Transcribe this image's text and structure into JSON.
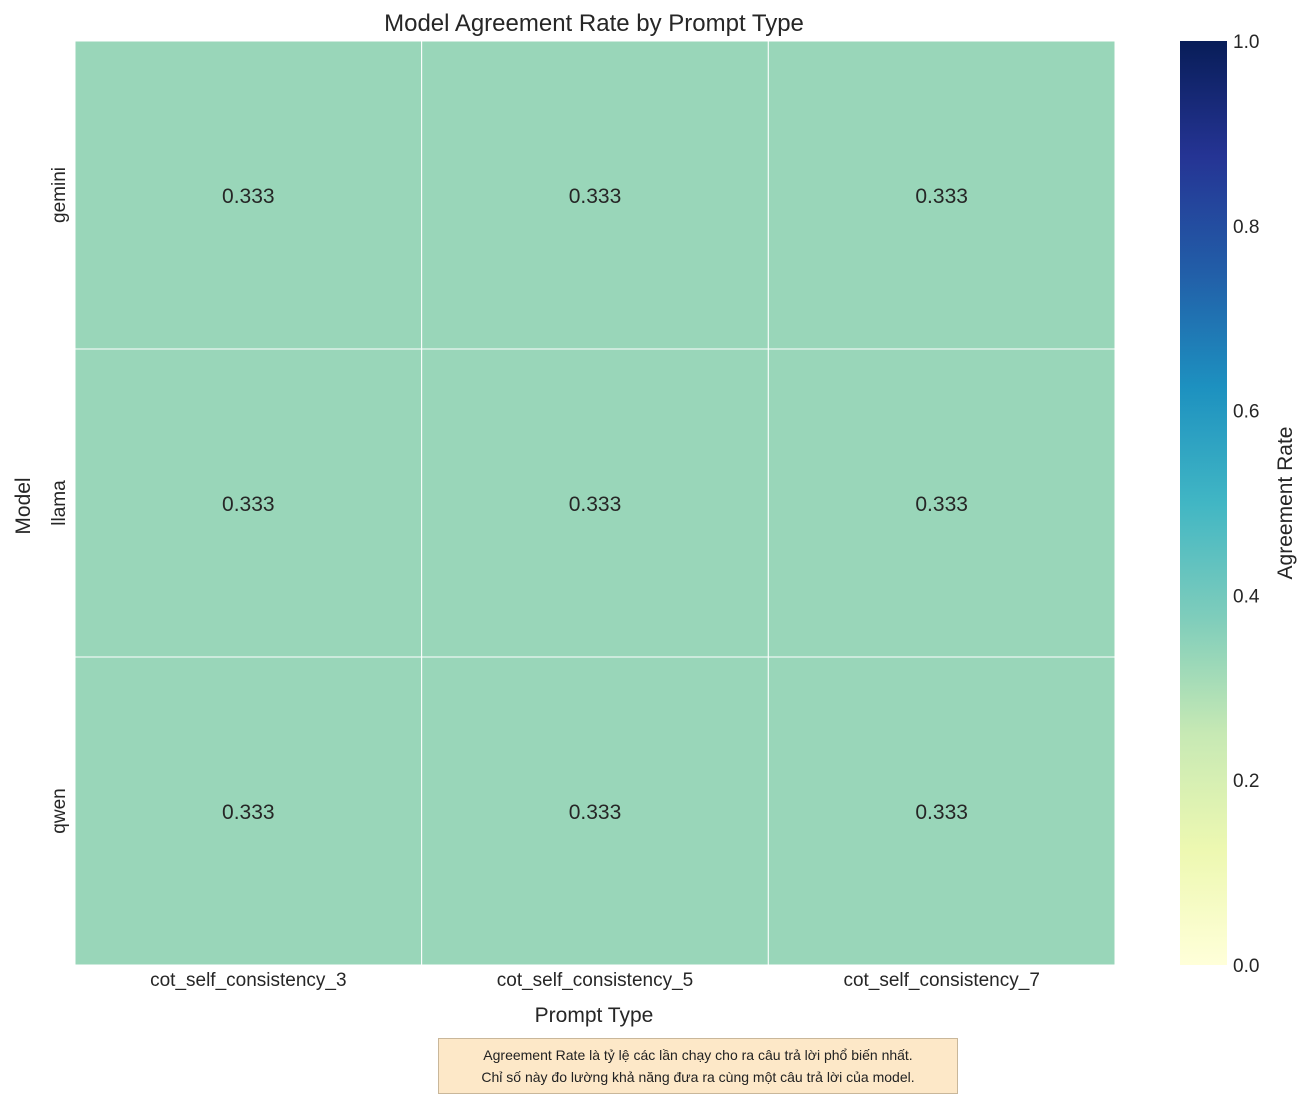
{
  "chart_data": {
    "type": "heatmap",
    "title": "Model Agreement Rate by Prompt Type",
    "xlabel": "Prompt Type",
    "ylabel": "Model",
    "x_categories": [
      "cot_self_consistency_3",
      "cot_self_consistency_5",
      "cot_self_consistency_7"
    ],
    "y_categories": [
      "gemini",
      "llama",
      "qwen"
    ],
    "values": [
      [
        0.333,
        0.333,
        0.333
      ],
      [
        0.333,
        0.333,
        0.333
      ],
      [
        0.333,
        0.333,
        0.333
      ]
    ],
    "value_format": "0.333",
    "colorbar": {
      "label": "Agreement Rate",
      "range": [
        0,
        1
      ],
      "ticks": [
        "0.0",
        "0.2",
        "0.4",
        "0.6",
        "0.8",
        "1.0"
      ],
      "colormap": "YlGnBu",
      "stops": [
        "#ffffd9",
        "#edf8b1",
        "#c7e9b4",
        "#7fcdbb",
        "#41b6c4",
        "#1d91c0",
        "#225ea8",
        "#253494",
        "#081d58"
      ]
    },
    "cell_color": "#99d6b9"
  },
  "note": {
    "line1": "Agreement Rate là tỷ lệ các lần chạy cho ra câu trả lời phổ biến nhất.",
    "line2": "Chỉ số này đo lường khả năng đưa ra cùng một câu trả lời của model."
  }
}
